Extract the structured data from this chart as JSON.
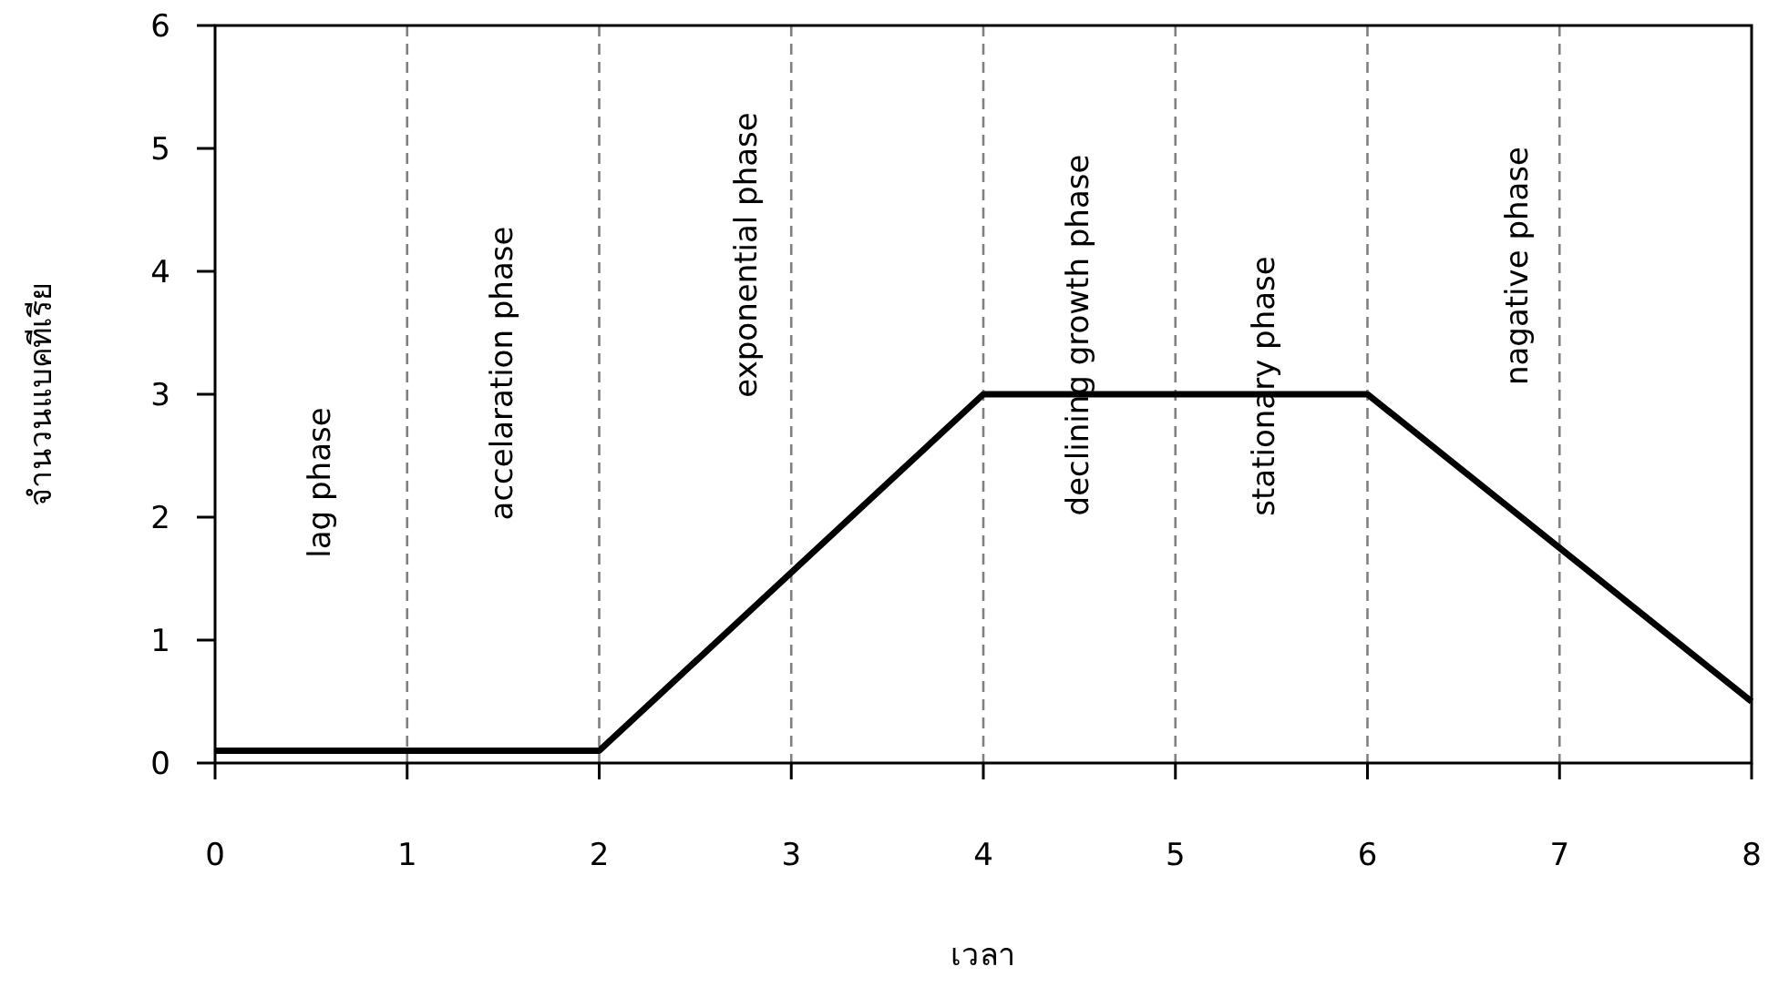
{
  "chart_data": {
    "type": "line",
    "xlabel": "เวลา",
    "ylabel": "จำนวนแบคทีเรีย",
    "x": [
      0,
      2,
      4,
      6,
      8
    ],
    "series": [
      {
        "color": "#000000",
        "values": [
          0.1,
          0.1,
          3,
          3,
          0.5
        ]
      }
    ],
    "xlim": [
      0,
      8
    ],
    "ylim": [
      0,
      6
    ],
    "xticks": [
      0,
      1,
      2,
      3,
      4,
      5,
      6,
      7,
      8
    ],
    "yticks": [
      0,
      1,
      2,
      3,
      4,
      5,
      6
    ],
    "grid": false,
    "marker": "none",
    "line_style": "solid",
    "ref_lines": [
      {
        "axis": "x",
        "value": 1,
        "color": "#808080",
        "line_style": "dashed"
      },
      {
        "axis": "x",
        "value": 2,
        "color": "#808080",
        "line_style": "dashed"
      },
      {
        "axis": "x",
        "value": 3,
        "color": "#808080",
        "line_style": "dashed"
      },
      {
        "axis": "x",
        "value": 4,
        "color": "#808080",
        "line_style": "dashed"
      },
      {
        "axis": "x",
        "value": 5,
        "color": "#808080",
        "line_style": "dashed"
      },
      {
        "axis": "x",
        "value": 6,
        "color": "#808080",
        "line_style": "dashed"
      },
      {
        "axis": "x",
        "value": 7,
        "color": "#808080",
        "line_style": "dashed"
      }
    ],
    "annotations": [
      "lag phase",
      "accelaration phase",
      "exponential phase",
      "declining growth phase",
      "stationary phase",
      "nagative phase"
    ]
  }
}
